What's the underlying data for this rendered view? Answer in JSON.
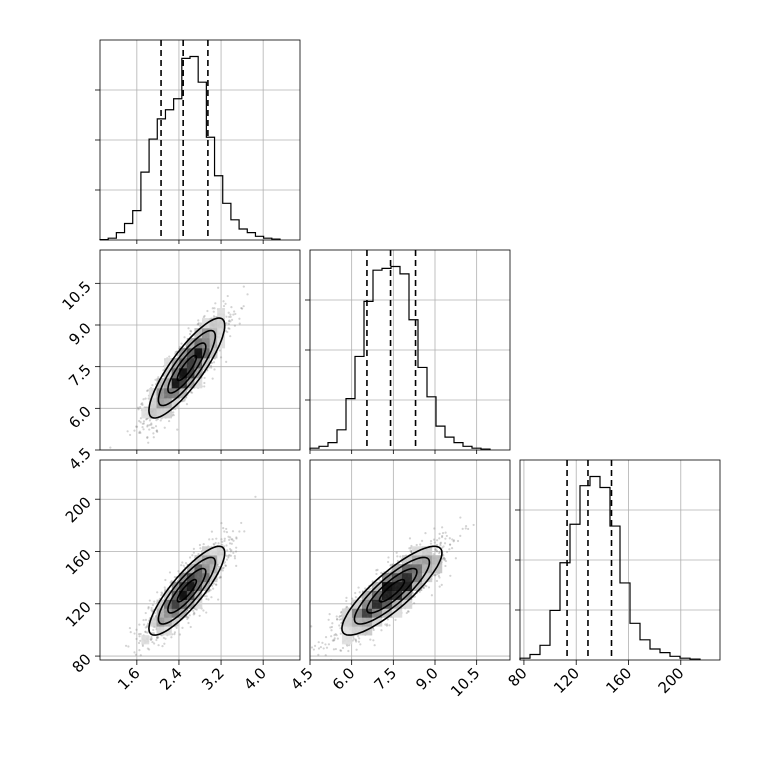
{
  "chart_data": {
    "type": "corner",
    "grid": true,
    "parameters": [
      {
        "index": 0,
        "range": [
          0.9,
          4.7
        ],
        "ticks": [
          "1.6",
          "2.4",
          "3.2",
          "4.0"
        ],
        "tick_values": [
          1.6,
          2.4,
          3.2,
          4.0
        ],
        "quantiles": [
          2.06,
          2.48,
          2.95
        ],
        "hist_max": 0.6,
        "histogram": [
          0.002,
          0.01,
          0.04,
          0.09,
          0.16,
          0.37,
          0.55,
          0.66,
          0.71,
          0.77,
          0.99,
          1.0,
          0.86,
          0.56,
          0.35,
          0.2,
          0.11,
          0.06,
          0.04,
          0.02,
          0.01,
          0.005
        ]
      },
      {
        "index": 1,
        "range": [
          4.5,
          11.7
        ],
        "ticks": [
          "4.5",
          "6.0",
          "7.5",
          "9.0",
          "10.5"
        ],
        "tick_values": [
          4.5,
          6.0,
          7.5,
          9.0,
          10.5
        ],
        "quantiles": [
          6.55,
          7.4,
          8.3
        ],
        "hist_max": 0.6,
        "histogram": [
          0.01,
          0.02,
          0.04,
          0.11,
          0.28,
          0.51,
          0.81,
          0.98,
          0.99,
          1.0,
          0.96,
          0.71,
          0.45,
          0.29,
          0.13,
          0.07,
          0.04,
          0.02,
          0.01,
          0.005
        ]
      },
      {
        "index": 2,
        "range": [
          77,
          230
        ],
        "ticks": [
          "80",
          "120",
          "160",
          "200"
        ],
        "tick_values": [
          80,
          120,
          160,
          200
        ],
        "quantiles": [
          113,
          129,
          147
        ],
        "hist_max": 0.6,
        "histogram": [
          0.01,
          0.03,
          0.08,
          0.27,
          0.53,
          0.74,
          0.95,
          1.0,
          0.94,
          0.73,
          0.42,
          0.2,
          0.11,
          0.06,
          0.04,
          0.02,
          0.01,
          0.005
        ]
      }
    ],
    "scatter_pairs": [
      {
        "x": 0,
        "y": 1,
        "center": [
          2.55,
          7.45
        ],
        "std": [
          0.36,
          0.9
        ],
        "correlation": 0.85
      },
      {
        "x": 0,
        "y": 2,
        "center": [
          2.55,
          130
        ],
        "std": [
          0.36,
          17
        ],
        "correlation": 0.85
      },
      {
        "x": 1,
        "y": 2,
        "center": [
          7.45,
          130
        ],
        "std": [
          0.9,
          17
        ],
        "correlation": 0.85
      }
    ]
  }
}
